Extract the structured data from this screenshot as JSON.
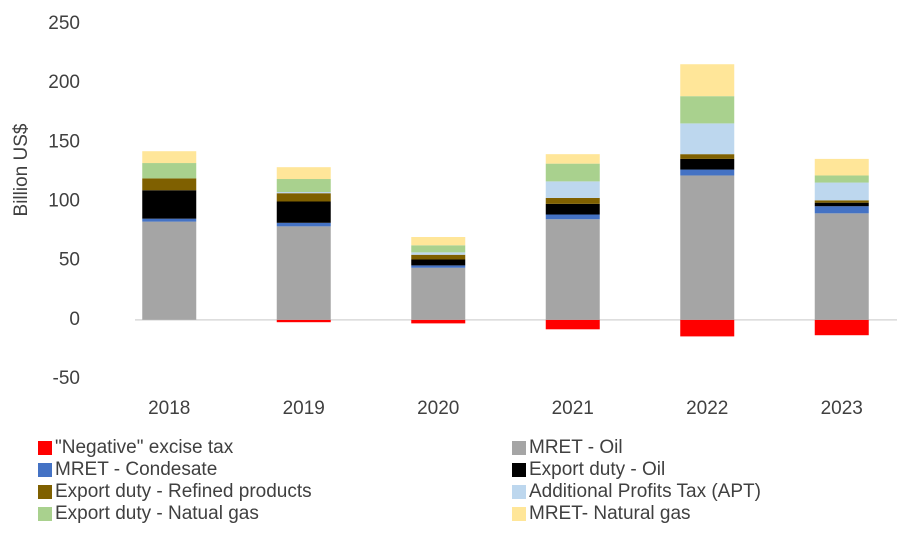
{
  "chart_data": {
    "type": "bar",
    "stacked": true,
    "y_label": "Billion US$",
    "categories": [
      "2018",
      "2019",
      "2020",
      "2021",
      "2022",
      "2023"
    ],
    "series": [
      {
        "name": "\"Negative\" excise tax",
        "color": "#ff0000",
        "values": [
          0,
          -2,
          -3,
          -8,
          -14,
          -13
        ]
      },
      {
        "name": "MRET - Oil",
        "color": "#a5a5a5",
        "values": [
          83,
          79,
          44,
          85,
          122,
          90
        ]
      },
      {
        "name": "MRET - Condesate",
        "color": "#4472c4",
        "values": [
          2.5,
          3,
          2,
          4,
          5,
          6
        ]
      },
      {
        "name": "Export duty - Oil",
        "color": "#000000",
        "values": [
          24,
          18,
          5,
          9,
          9,
          3
        ]
      },
      {
        "name": "Export duty - Refined products",
        "color": "#7f6000",
        "values": [
          10,
          7,
          4,
          5,
          4,
          2
        ]
      },
      {
        "name": "Additional Profits Tax (APT)",
        "color": "#bdd7ee",
        "values": [
          0,
          1,
          2,
          14,
          26,
          15
        ]
      },
      {
        "name": "Export duty - Natual gas",
        "color": "#a9d18e",
        "values": [
          13,
          11,
          6,
          15,
          23,
          6
        ]
      },
      {
        "name": "MRET- Natural gas",
        "color": "#ffe699",
        "values": [
          10,
          10,
          7,
          8,
          27,
          14
        ]
      }
    ],
    "ylim": [
      -50,
      250
    ],
    "yticks": [
      -50,
      0,
      50,
      100,
      150,
      200,
      250
    ],
    "grid": false
  }
}
